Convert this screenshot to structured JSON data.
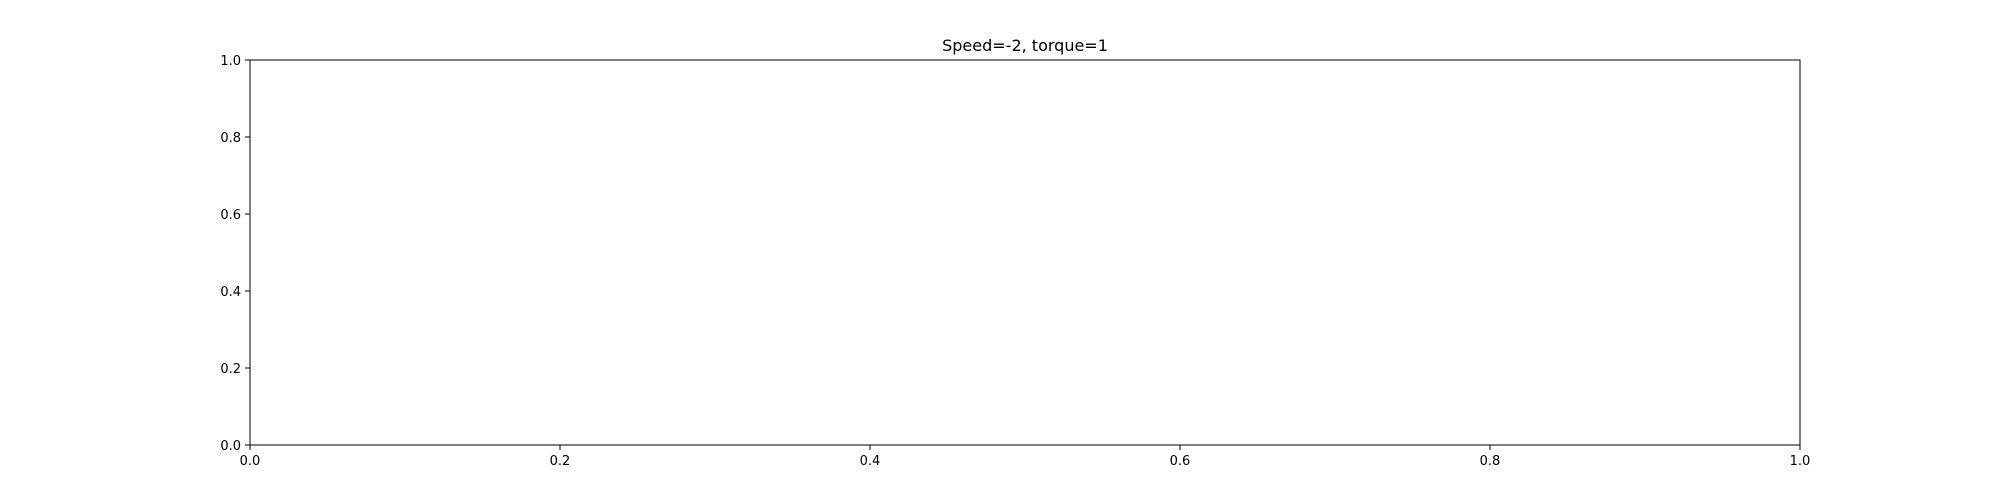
{
  "chart_data": {
    "type": "line",
    "title": "Speed=-2, torque=1",
    "xlabel": "",
    "ylabel": "",
    "xlim": [
      0.0,
      1.0
    ],
    "ylim": [
      0.0,
      1.0
    ],
    "xticks": [
      0.0,
      0.2,
      0.4,
      0.6,
      0.8,
      1.0
    ],
    "yticks": [
      0.0,
      0.2,
      0.4,
      0.6,
      0.8,
      1.0
    ],
    "xtick_labels": [
      "0.0",
      "0.2",
      "0.4",
      "0.6",
      "0.8",
      "1.0"
    ],
    "ytick_labels": [
      "0.0",
      "0.2",
      "0.4",
      "0.6",
      "0.8",
      "1.0"
    ],
    "grid": false,
    "series": [],
    "colors": {
      "axes": "#000000",
      "background": "#ffffff"
    }
  }
}
